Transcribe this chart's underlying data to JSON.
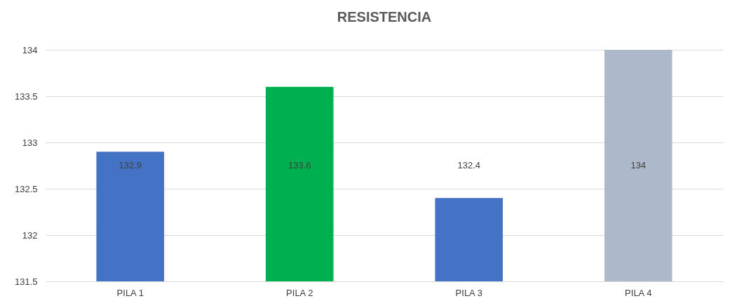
{
  "chart_data": {
    "type": "bar",
    "title": "RESISTENCIA",
    "categories": [
      "PILA 1",
      "PILA 2",
      "PILA 3",
      "PILA 4"
    ],
    "values": [
      132.9,
      133.6,
      132.4,
      134
    ],
    "colors": [
      "#4472c4",
      "#00b050",
      "#4472c4",
      "#adb9ca"
    ],
    "ylim": [
      131.5,
      134
    ],
    "yticks": [
      131.5,
      132,
      132.5,
      133,
      133.5,
      134
    ],
    "grid": "y",
    "data_labels": true
  }
}
